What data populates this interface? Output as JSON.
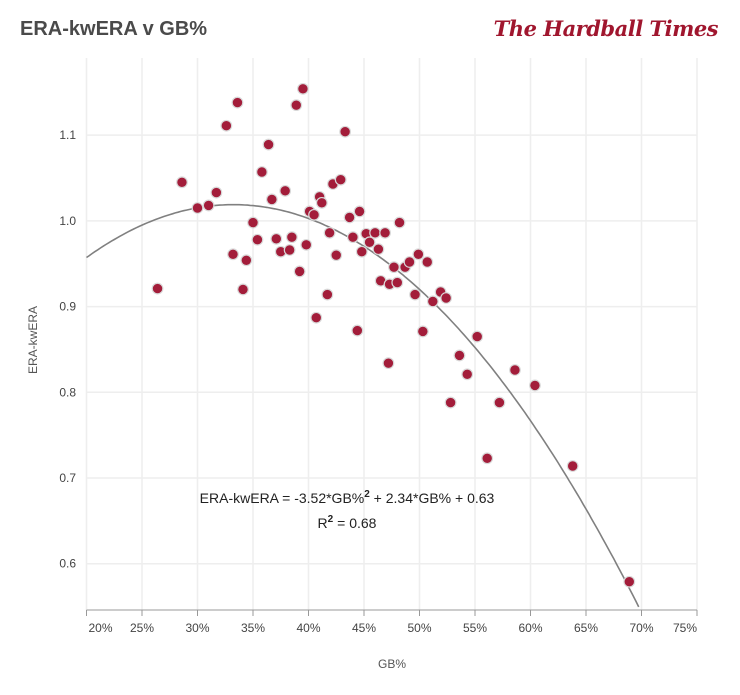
{
  "header": {
    "title": "ERA-kwERA v GB%",
    "logo_text": "The Hardball Times"
  },
  "chart_data": {
    "type": "scatter",
    "title": "ERA-kwERA v GB%",
    "xlabel": "GB%",
    "ylabel": "ERA-kwERA",
    "xlim": [
      20,
      75
    ],
    "ylim": [
      0.546,
      1.19
    ],
    "x_ticks": [
      "20%",
      "25%",
      "30%",
      "35%",
      "40%",
      "45%",
      "50%",
      "55%",
      "60%",
      "65%",
      "70%",
      "75%"
    ],
    "x_tick_values": [
      20,
      25,
      30,
      35,
      40,
      45,
      50,
      55,
      60,
      65,
      70,
      75
    ],
    "y_ticks": [
      "0.6",
      "0.7",
      "0.8",
      "0.9",
      "1.0",
      "1.1"
    ],
    "y_tick_values": [
      0.6,
      0.7,
      0.8,
      0.9,
      1.0,
      1.1
    ],
    "grid": true,
    "point_color": "#a31d3a",
    "trend_color": "#808080",
    "trendline": {
      "type": "polynomial",
      "coefficients": [
        -3.52,
        2.34,
        0.63
      ]
    },
    "annotation": {
      "equation": "ERA-kwERA = -3.52*GB%",
      "equation_sup": "2",
      "equation_rest": " + 2.34*GB% + 0.63",
      "r2_label": "R",
      "r2_sup": "2",
      "r2_value": " = 0.68"
    },
    "points": [
      [
        26.4,
        0.921
      ],
      [
        28.6,
        1.045
      ],
      [
        30.0,
        1.015
      ],
      [
        31.0,
        1.018
      ],
      [
        31.7,
        1.033
      ],
      [
        32.6,
        1.111
      ],
      [
        33.2,
        0.961
      ],
      [
        33.6,
        1.138
      ],
      [
        34.1,
        0.92
      ],
      [
        34.4,
        0.954
      ],
      [
        35.0,
        0.998
      ],
      [
        35.4,
        0.978
      ],
      [
        35.8,
        1.057
      ],
      [
        36.4,
        1.089
      ],
      [
        36.7,
        1.025
      ],
      [
        37.1,
        0.979
      ],
      [
        37.5,
        0.964
      ],
      [
        37.9,
        1.035
      ],
      [
        38.3,
        0.966
      ],
      [
        38.5,
        0.981
      ],
      [
        38.9,
        1.135
      ],
      [
        39.2,
        0.941
      ],
      [
        39.5,
        1.154
      ],
      [
        39.8,
        0.972
      ],
      [
        40.1,
        1.011
      ],
      [
        40.5,
        1.007
      ],
      [
        40.7,
        0.887
      ],
      [
        41.0,
        1.028
      ],
      [
        41.2,
        1.021
      ],
      [
        41.7,
        0.914
      ],
      [
        41.9,
        0.986
      ],
      [
        42.2,
        1.043
      ],
      [
        42.5,
        0.96
      ],
      [
        42.9,
        1.048
      ],
      [
        43.3,
        1.104
      ],
      [
        43.7,
        1.004
      ],
      [
        44.0,
        0.981
      ],
      [
        44.4,
        0.872
      ],
      [
        44.6,
        1.011
      ],
      [
        44.8,
        0.964
      ],
      [
        45.2,
        0.985
      ],
      [
        45.5,
        0.975
      ],
      [
        46.0,
        0.986
      ],
      [
        46.3,
        0.967
      ],
      [
        46.5,
        0.93
      ],
      [
        46.9,
        0.986
      ],
      [
        47.2,
        0.834
      ],
      [
        47.3,
        0.926
      ],
      [
        47.7,
        0.946
      ],
      [
        48.0,
        0.928
      ],
      [
        48.2,
        0.998
      ],
      [
        48.7,
        0.946
      ],
      [
        49.1,
        0.952
      ],
      [
        49.6,
        0.914
      ],
      [
        49.9,
        0.961
      ],
      [
        50.3,
        0.871
      ],
      [
        50.7,
        0.952
      ],
      [
        51.2,
        0.906
      ],
      [
        51.9,
        0.917
      ],
      [
        52.4,
        0.91
      ],
      [
        52.8,
        0.788
      ],
      [
        53.6,
        0.843
      ],
      [
        54.3,
        0.821
      ],
      [
        55.2,
        0.865
      ],
      [
        56.1,
        0.723
      ],
      [
        57.2,
        0.788
      ],
      [
        58.6,
        0.826
      ],
      [
        60.4,
        0.808
      ],
      [
        63.8,
        0.714
      ],
      [
        68.9,
        0.579
      ]
    ]
  }
}
